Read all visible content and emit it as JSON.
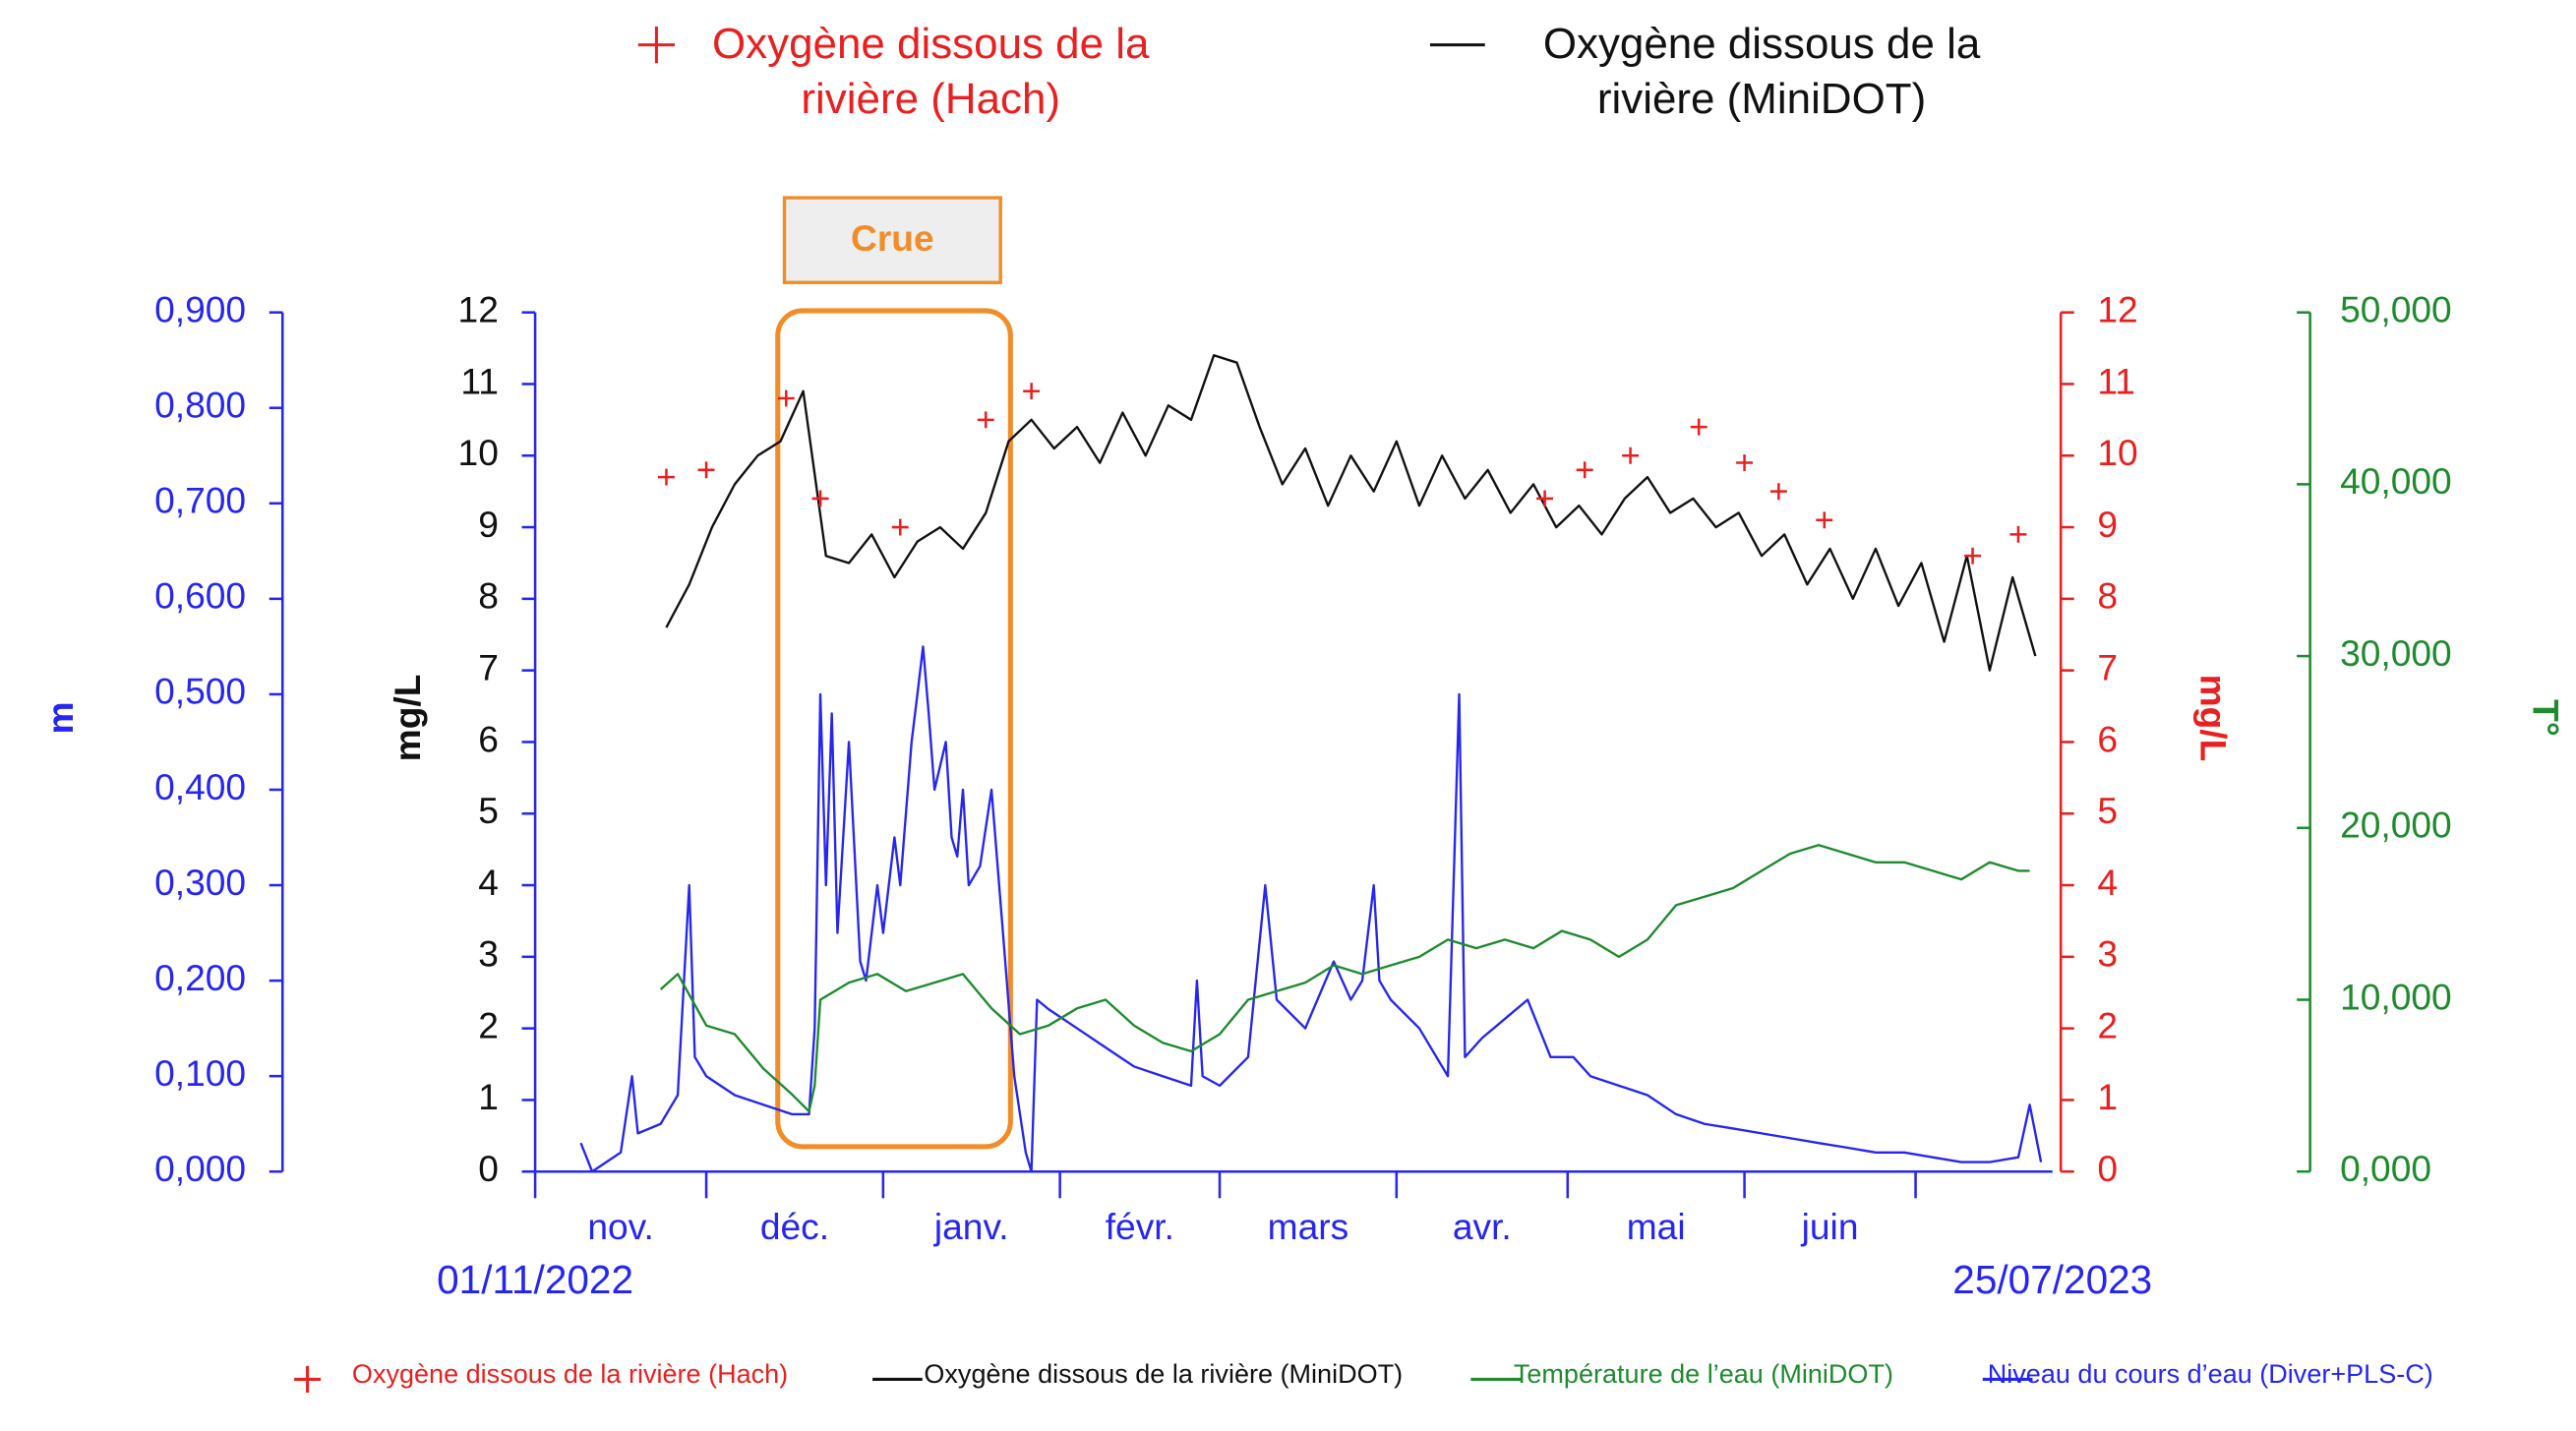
{
  "chart_data": {
    "type": "line",
    "annotation": "Crue",
    "xlim": [
      0,
      266
    ],
    "xticks": [
      0,
      30,
      61,
      92,
      120,
      151,
      181,
      212,
      242
    ],
    "months": [
      "nov.",
      "déc.",
      "janv.",
      "févr.",
      "mars",
      "avr.",
      "mai",
      "juin"
    ],
    "x_start_label": "01/11/2022",
    "x_end_label": "25/07/2023",
    "ylabel": "mg/L",
    "ylim": [
      0,
      12
    ],
    "yticks": [
      0,
      1,
      2,
      3,
      4,
      5,
      6,
      7,
      8,
      9,
      10,
      11,
      12
    ],
    "y2label": "mg/L",
    "y2lim": [
      0,
      12
    ],
    "y2ticks": [
      0,
      1,
      2,
      3,
      4,
      5,
      6,
      7,
      8,
      9,
      10,
      11,
      12
    ],
    "y3label": "m",
    "y3lim": [
      0,
      0.9
    ],
    "y3ticks": [
      {
        "value": 0,
        "label": "0,000"
      },
      {
        "value": 0.1,
        "label": "0,100"
      },
      {
        "value": 0.2,
        "label": "0,200"
      },
      {
        "value": 0.3,
        "label": "0,300"
      },
      {
        "value": 0.4,
        "label": "0,400"
      },
      {
        "value": 0.5,
        "label": "0,500"
      },
      {
        "value": 0.6,
        "label": "0,600"
      },
      {
        "value": 0.7,
        "label": "0,700"
      },
      {
        "value": 0.8,
        "label": "0,800"
      },
      {
        "value": 0.9,
        "label": "0,900"
      }
    ],
    "y4label": "T°",
    "y4lim": [
      0,
      50
    ],
    "y4ticks": [
      {
        "value": 0,
        "label": "0,000"
      },
      {
        "value": 10,
        "label": "10,000"
      },
      {
        "value": 20,
        "label": "20,000"
      },
      {
        "value": 30,
        "label": "30,000"
      },
      {
        "value": 40,
        "label": "40,000"
      },
      {
        "value": 50,
        "label": "50,000"
      }
    ],
    "series": [
      {
        "name": "Oxygène dissous de la rivière (Hach)",
        "color": "#e82020",
        "axis": "y2",
        "marker": "plus",
        "x": [
          23,
          30,
          44,
          50,
          64,
          79,
          87,
          177,
          184,
          192,
          204,
          212,
          218,
          226,
          252,
          260
        ],
        "values": [
          9.7,
          9.8,
          10.8,
          9.4,
          9.0,
          10.5,
          10.9,
          9.4,
          9.8,
          10.0,
          10.4,
          9.9,
          9.5,
          9.1,
          8.6,
          8.9
        ]
      },
      {
        "name": "Oxygène dissous de la rivière (MiniDOT)",
        "color": "#111111",
        "axis": "y",
        "x": [
          23,
          27,
          31,
          35,
          39,
          43,
          47,
          51,
          55,
          59,
          63,
          67,
          71,
          75,
          79,
          83,
          87,
          91,
          95,
          99,
          103,
          107,
          111,
          115,
          119,
          123,
          127,
          131,
          135,
          139,
          143,
          147,
          151,
          155,
          159,
          163,
          167,
          171,
          175,
          179,
          183,
          187,
          191,
          195,
          199,
          203,
          207,
          211,
          215,
          219,
          223,
          227,
          231,
          235,
          239,
          243,
          247,
          251,
          255,
          259,
          263
        ],
        "values": [
          7.6,
          8.2,
          9.0,
          9.6,
          10.0,
          10.2,
          10.9,
          8.6,
          8.5,
          8.9,
          8.3,
          8.8,
          9.0,
          8.7,
          9.2,
          10.2,
          10.5,
          10.1,
          10.4,
          9.9,
          10.6,
          10.0,
          10.7,
          10.5,
          11.4,
          11.3,
          10.4,
          9.6,
          10.1,
          9.3,
          10.0,
          9.5,
          10.2,
          9.3,
          10.0,
          9.4,
          9.8,
          9.2,
          9.6,
          9.0,
          9.3,
          8.9,
          9.4,
          9.7,
          9.2,
          9.4,
          9.0,
          9.2,
          8.6,
          8.9,
          8.2,
          8.7,
          8.0,
          8.7,
          7.9,
          8.5,
          7.4,
          8.6,
          7.0,
          8.3,
          7.2
        ]
      },
      {
        "name": "Température de l’eau (MiniDOT)",
        "color": "#1f8a2e",
        "axis": "y4",
        "x": [
          22,
          25,
          30,
          35,
          40,
          45,
          48,
          49,
          50,
          55,
          60,
          65,
          70,
          75,
          80,
          85,
          90,
          95,
          100,
          105,
          110,
          115,
          120,
          125,
          130,
          135,
          140,
          145,
          150,
          155,
          160,
          165,
          170,
          175,
          180,
          185,
          190,
          195,
          200,
          205,
          210,
          215,
          220,
          225,
          230,
          235,
          240,
          245,
          250,
          255,
          260,
          262
        ],
        "values": [
          10.6,
          11.5,
          8.5,
          8.0,
          6.0,
          4.5,
          3.5,
          5.0,
          10.0,
          11.0,
          11.5,
          10.5,
          11.0,
          11.5,
          9.5,
          8.0,
          8.5,
          9.5,
          10.0,
          8.5,
          7.5,
          7.0,
          8.0,
          10.0,
          10.5,
          11.0,
          12.0,
          11.5,
          12.0,
          12.5,
          13.5,
          13.0,
          13.5,
          13.0,
          14.0,
          13.5,
          12.5,
          13.5,
          15.5,
          16.0,
          16.5,
          17.5,
          18.5,
          19.0,
          18.5,
          18.0,
          18.0,
          17.5,
          17.0,
          18.0,
          17.5,
          17.5
        ]
      },
      {
        "name": "Niveau du cours d’eau (Diver+PLS-C)",
        "color": "#2626f0",
        "axis": "y3",
        "x": [
          8,
          10,
          15,
          17,
          18,
          22,
          25,
          27,
          28,
          30,
          35,
          40,
          45,
          48,
          49,
          50,
          51,
          52,
          53,
          55,
          57,
          58,
          60,
          61,
          63,
          64,
          66,
          67,
          68,
          69,
          70,
          72,
          73,
          74,
          75,
          76,
          78,
          80,
          82,
          84,
          86,
          87,
          88,
          90,
          95,
          100,
          105,
          110,
          115,
          116,
          117,
          120,
          125,
          128,
          130,
          135,
          140,
          143,
          145,
          147,
          148,
          150,
          155,
          160,
          162,
          163,
          166,
          170,
          174,
          178,
          182,
          185,
          190,
          195,
          200,
          205,
          210,
          215,
          220,
          225,
          230,
          235,
          240,
          245,
          250,
          255,
          260,
          262,
          264
        ],
        "values": [
          0.03,
          0.0,
          0.02,
          0.1,
          0.04,
          0.05,
          0.08,
          0.3,
          0.12,
          0.1,
          0.08,
          0.07,
          0.06,
          0.06,
          0.15,
          0.5,
          0.3,
          0.48,
          0.25,
          0.45,
          0.22,
          0.2,
          0.3,
          0.25,
          0.35,
          0.3,
          0.45,
          0.5,
          0.55,
          0.48,
          0.4,
          0.45,
          0.35,
          0.33,
          0.4,
          0.3,
          0.32,
          0.4,
          0.25,
          0.1,
          0.02,
          0.0,
          0.18,
          0.17,
          0.15,
          0.13,
          0.11,
          0.1,
          0.09,
          0.2,
          0.1,
          0.09,
          0.12,
          0.3,
          0.18,
          0.15,
          0.22,
          0.18,
          0.2,
          0.3,
          0.2,
          0.18,
          0.15,
          0.1,
          0.5,
          0.12,
          0.14,
          0.16,
          0.18,
          0.12,
          0.12,
          0.1,
          0.09,
          0.08,
          0.06,
          0.05,
          0.045,
          0.04,
          0.035,
          0.03,
          0.025,
          0.02,
          0.02,
          0.015,
          0.01,
          0.01,
          0.015,
          0.07,
          0.01
        ]
      }
    ]
  }
}
